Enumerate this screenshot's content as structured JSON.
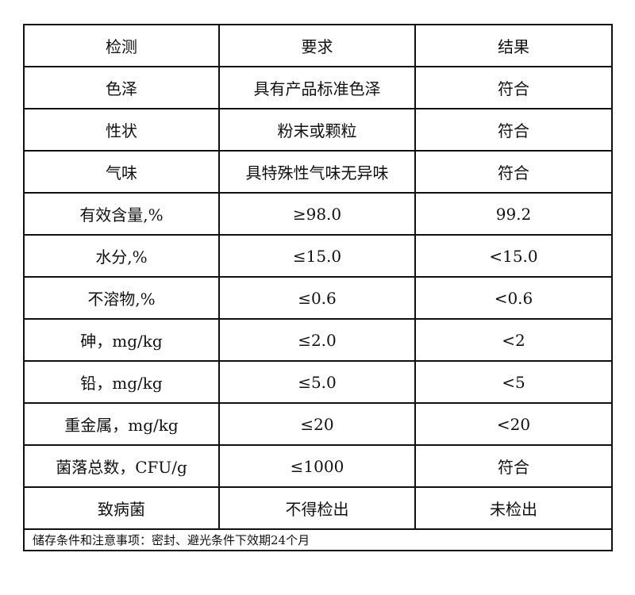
{
  "header": [
    "检测",
    "要求",
    "结果"
  ],
  "rows": [
    [
      "色泽",
      "具有产品标准色泽",
      "符合"
    ],
    [
      "性状",
      "粉末或颗粒",
      "符合"
    ],
    [
      "气味",
      "具特殊性气味无异味",
      "符合"
    ],
    [
      "有效含量,%",
      "≥98.0",
      "99.2"
    ],
    [
      "水分,%",
      "≤15.0",
      "<15.0"
    ],
    [
      "不溶物,%",
      "≤0.6",
      "<0.6"
    ],
    [
      "砷，mg/kg",
      "≤2.0",
      "<2"
    ],
    [
      "铅，mg/kg",
      "≤5.0",
      "<5"
    ],
    [
      "重金属，mg/kg",
      "≤20",
      "<20"
    ],
    [
      "菌落总数，CFU/g",
      "≤1000",
      "符合"
    ],
    [
      "致病菌",
      "不得检出",
      "未检出"
    ]
  ],
  "footer": "储存条件和注意事项：密封、避光条件下效期24个月"
}
